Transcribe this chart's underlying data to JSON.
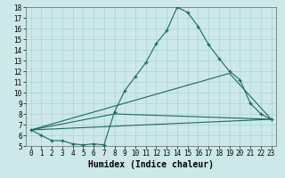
{
  "xlabel": "Humidex (Indice chaleur)",
  "bg_color": "#cce8e8",
  "line_color": "#1a6b5e",
  "xlim": [
    -0.5,
    23.5
  ],
  "ylim": [
    5,
    18
  ],
  "series1_x": [
    0,
    1,
    2,
    3,
    4,
    5,
    6,
    7,
    8,
    9,
    10,
    11,
    12,
    13,
    14,
    15,
    16,
    17,
    18,
    19,
    20,
    21,
    22,
    23
  ],
  "series1_y": [
    6.5,
    6.0,
    5.5,
    5.5,
    5.2,
    5.1,
    5.2,
    5.1,
    8.2,
    10.2,
    11.5,
    12.8,
    14.6,
    15.8,
    18.0,
    17.5,
    16.2,
    14.5,
    13.2,
    12.0,
    11.2,
    9.0,
    8.0,
    7.5
  ],
  "line2_x": [
    0,
    23
  ],
  "line2_y": [
    6.5,
    7.5
  ],
  "line3_x": [
    0,
    8,
    23
  ],
  "line3_y": [
    6.5,
    8.0,
    7.5
  ],
  "line4_x": [
    0,
    19,
    23
  ],
  "line4_y": [
    6.5,
    11.8,
    7.5
  ],
  "xticks": [
    0,
    1,
    2,
    3,
    4,
    5,
    6,
    7,
    8,
    9,
    10,
    11,
    12,
    13,
    14,
    15,
    16,
    17,
    18,
    19,
    20,
    21,
    22,
    23
  ],
  "yticks": [
    5,
    6,
    7,
    8,
    9,
    10,
    11,
    12,
    13,
    14,
    15,
    16,
    17,
    18
  ],
  "tick_fontsize": 5.5,
  "xlabel_fontsize": 7.0,
  "grid_color": "#aad4d4",
  "spine_color": "#666666"
}
